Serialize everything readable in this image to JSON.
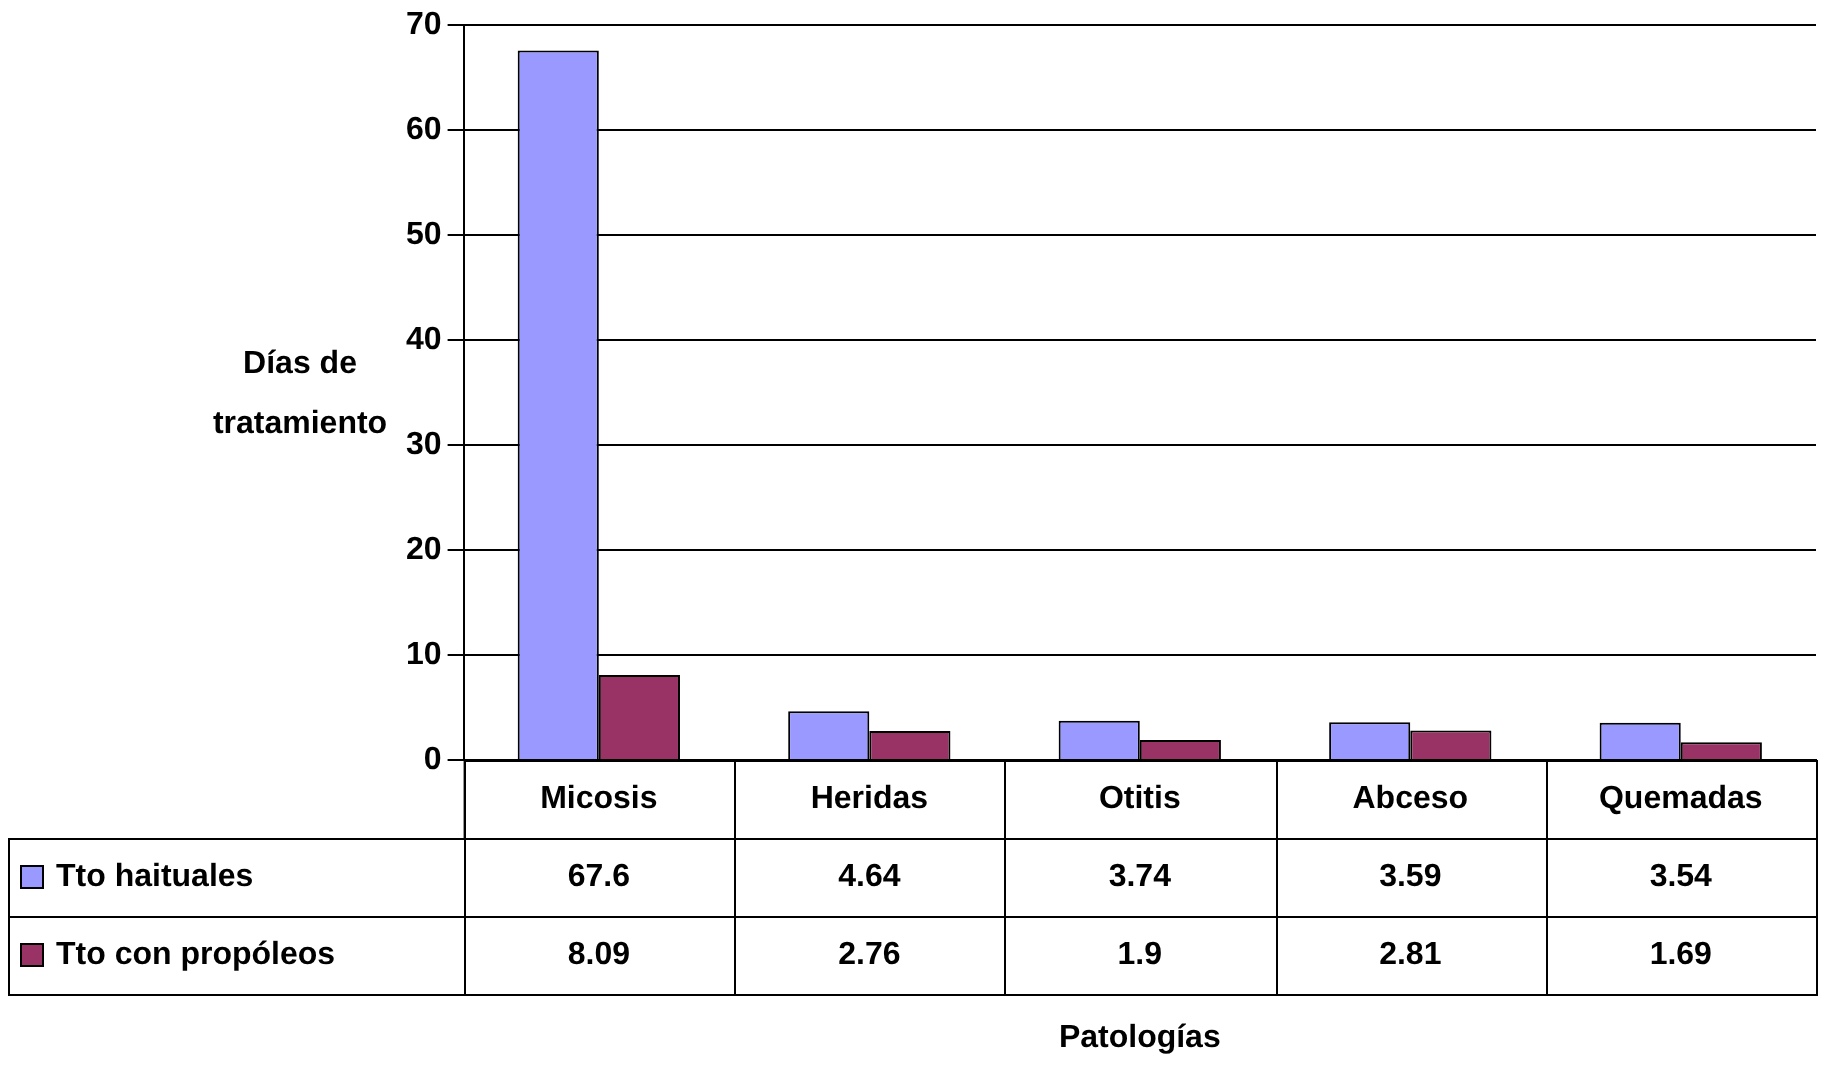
{
  "chart_data": {
    "type": "bar",
    "annotations": [
      "Patologías"
    ],
    "ylabel": "Días de tratamiento",
    "categories": [
      "Micosis",
      "Heridas",
      "Otitis",
      "Abceso",
      "Quemadas"
    ],
    "series": [
      {
        "name": "Tto haituales",
        "color": "#9999ff",
        "values": [
          67.6,
          4.64,
          3.74,
          3.59,
          3.54
        ]
      },
      {
        "name": "Tto con propóleos",
        "color": "#993366",
        "values": [
          8.09,
          2.76,
          1.9,
          2.81,
          1.69
        ]
      }
    ],
    "ylim": [
      0,
      70
    ],
    "yticks": [
      0,
      10,
      20,
      30,
      40,
      50,
      60,
      70
    ],
    "grid": "y",
    "legend": "bottom",
    "data_labels": true
  }
}
